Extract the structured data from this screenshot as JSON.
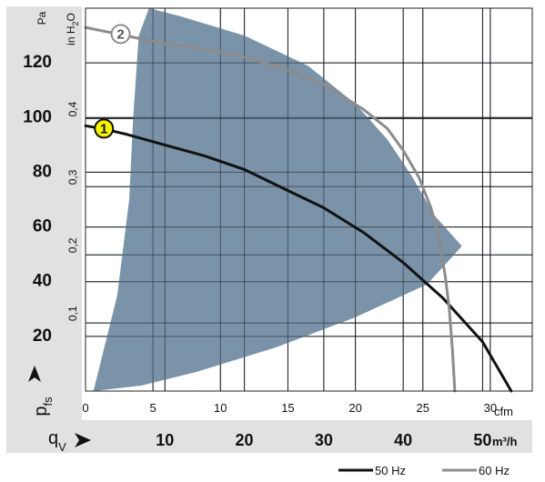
{
  "chart_data": {
    "type": "line",
    "axes": {
      "pa": {
        "unit": "Pa",
        "range": [
          0,
          140
        ],
        "ticks": [
          20,
          40,
          60,
          80,
          100,
          120
        ]
      },
      "inh2o": {
        "unit": "in H2O",
        "unit_main": "in H",
        "unit_sub": "2",
        "unit_tail": "O",
        "range": [
          0,
          0.5621
        ],
        "ticks": [
          "0,1",
          "0,2",
          "0,3",
          "0,4"
        ]
      },
      "cfm": {
        "unit": "cfm",
        "range": [
          0,
          33.11
        ],
        "ticks": [
          0,
          5,
          10,
          15,
          20,
          25,
          30
        ]
      },
      "m3h": {
        "unit": "m³/h",
        "range": [
          0,
          56.25
        ],
        "ticks": [
          10,
          20,
          30,
          40,
          50
        ]
      }
    },
    "y_symbol": "p",
    "y_symbol_sub": "fs",
    "x_symbol": "q",
    "x_symbol_sub": "V",
    "grid": true,
    "operating_area": {
      "color": "#7b93a8",
      "boundary_m3h_pa": [
        [
          8.0,
          140
        ],
        [
          12.0,
          137
        ],
        [
          20.0,
          130
        ],
        [
          28.0,
          119
        ],
        [
          34.0,
          105
        ],
        [
          38.0,
          92
        ],
        [
          41.0,
          79
        ],
        [
          44.0,
          64
        ],
        [
          47.4,
          53
        ],
        [
          43.0,
          39
        ],
        [
          34.0,
          27
        ],
        [
          24.0,
          16
        ],
        [
          14.0,
          7
        ],
        [
          7.0,
          2
        ],
        [
          1.0,
          0
        ],
        [
          4.0,
          35
        ],
        [
          5.5,
          70
        ],
        [
          6.0,
          100
        ],
        [
          6.7,
          130
        ]
      ]
    },
    "series": [
      {
        "marker": "1",
        "name": "50 Hz",
        "color": "#111111",
        "marker_fill": "#f4f400",
        "points_m3h_pa": [
          [
            0,
            97
          ],
          [
            2,
            96
          ],
          [
            5,
            94
          ],
          [
            10,
            90
          ],
          [
            15,
            86
          ],
          [
            20,
            81
          ],
          [
            25,
            74
          ],
          [
            30,
            67
          ],
          [
            35,
            58
          ],
          [
            40,
            47
          ],
          [
            45,
            34
          ],
          [
            50,
            18
          ],
          [
            53.6,
            0
          ]
        ]
      },
      {
        "marker": "2",
        "name": "60 Hz",
        "color": "#8c8c8c",
        "marker_fill": "#ffffff",
        "points_m3h_pa": [
          [
            0,
            133
          ],
          [
            5,
            130
          ],
          [
            10,
            127
          ],
          [
            15,
            125
          ],
          [
            20,
            122
          ],
          [
            25,
            118
          ],
          [
            30,
            112
          ],
          [
            35,
            103
          ],
          [
            38,
            96
          ],
          [
            40,
            88
          ],
          [
            42,
            78
          ],
          [
            43.5,
            67
          ],
          [
            44.5,
            56
          ],
          [
            45.3,
            42
          ],
          [
            45.8,
            30
          ],
          [
            46.2,
            15
          ],
          [
            46.5,
            0
          ]
        ]
      }
    ],
    "legend": {
      "position": "bottom-right"
    }
  }
}
